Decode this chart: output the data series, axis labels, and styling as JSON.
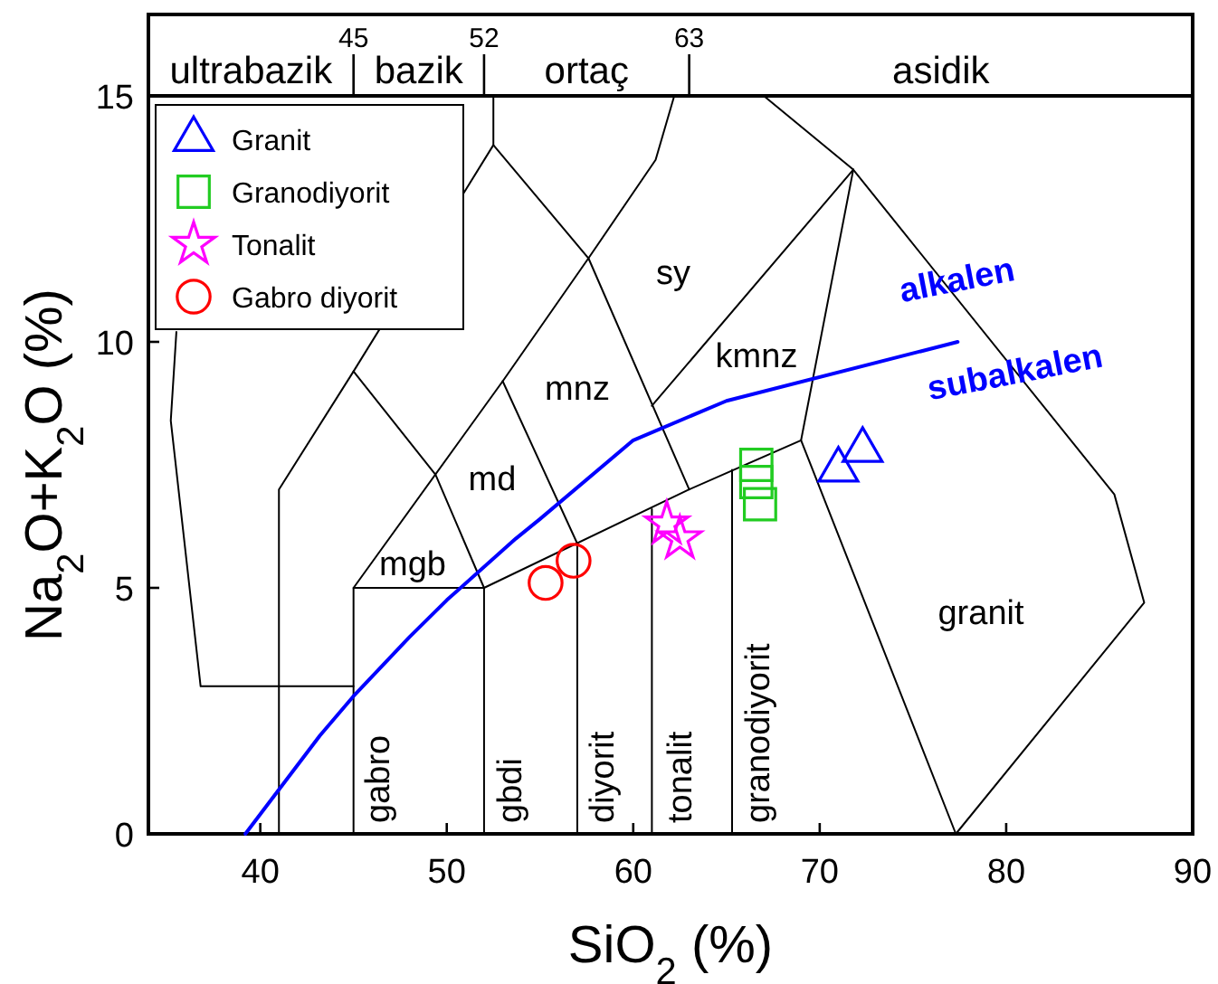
{
  "chart_data": {
    "type": "scatter",
    "xlabel": "SiO$_{2}$ (%)",
    "ylabel": "Na$_{2}$O+K$_{2}$O (%)",
    "xlim": [
      34,
      90
    ],
    "ylim": [
      0,
      15
    ],
    "xticks": [
      40,
      50,
      60,
      70,
      80,
      90
    ],
    "yticks": [
      0,
      5,
      10,
      15
    ],
    "x2lim": [
      34,
      90
    ],
    "x2ticks": [
      45,
      52,
      63
    ],
    "legend": "top left",
    "marker": "none",
    "line_style": "solid",
    "annotations": [
      "ultrabazik",
      "bazik",
      "ortaç",
      "asidik",
      "sy",
      "mnz",
      "kmnz",
      "md",
      "mgb",
      "granit",
      "gabro",
      "gbdi",
      "diyorit",
      "tonalit",
      "granodiyorit",
      "alkalen",
      "subalkalen"
    ],
    "series": [
      {
        "type": "line",
        "color": "#000000",
        "x": [
          35.5,
          35.2,
          36.8,
          45
        ],
        "values": [
          10.2,
          8.4,
          3,
          3
        ]
      },
      {
        "type": "line",
        "color": "#000000",
        "x": [
          41,
          41,
          45,
          52.5,
          52.5
        ],
        "values": [
          0,
          7,
          9.4,
          14,
          15
        ]
      },
      {
        "type": "line",
        "color": "#000000",
        "x": [
          52.5,
          57.6,
          63
        ],
        "values": [
          14,
          11.7,
          7
        ]
      },
      {
        "type": "line",
        "color": "#000000",
        "x": [
          62.2,
          61.2,
          57.6,
          53,
          45
        ],
        "values": [
          15,
          13.7,
          11.7,
          9.2,
          5
        ]
      },
      {
        "type": "line",
        "color": "#000000",
        "x": [
          45,
          49.4,
          52
        ],
        "values": [
          9.4,
          7.3,
          5
        ]
      },
      {
        "type": "line",
        "color": "#000000",
        "x": [
          53,
          57
        ],
        "values": [
          9.2,
          5.9
        ]
      },
      {
        "type": "line",
        "color": "#000000",
        "x": [
          45,
          45,
          52,
          52
        ],
        "values": [
          0,
          5,
          5,
          0
        ]
      },
      {
        "type": "line",
        "color": "#000000",
        "x": [
          52,
          63,
          69,
          71.8
        ],
        "values": [
          5,
          7,
          8,
          13.5
        ]
      },
      {
        "type": "line",
        "color": "#000000",
        "x": [
          57,
          57
        ],
        "values": [
          0,
          5.9
        ]
      },
      {
        "type": "line",
        "color": "#000000",
        "x": [
          61,
          61
        ],
        "values": [
          0,
          6.6
        ]
      },
      {
        "type": "line",
        "color": "#000000",
        "x": [
          65.3,
          65.3
        ],
        "values": [
          0,
          7.4
        ]
      },
      {
        "type": "line",
        "color": "#000000",
        "x": [
          69,
          77.3,
          87.4,
          85.8,
          71.8,
          67
        ],
        "values": [
          8,
          0,
          4.7,
          6.9,
          13.5,
          15
        ]
      },
      {
        "type": "line",
        "color": "#000000",
        "x": [
          71.8,
          61
        ],
        "values": [
          13.5,
          8.7
        ]
      },
      {
        "type": "line",
        "color": "#0000ff",
        "x": [
          39.2,
          40,
          43.2,
          45,
          48,
          50,
          53.7,
          55,
          60,
          65,
          77.4
        ],
        "values": [
          0,
          0.4,
          2,
          2.8,
          4,
          4.75,
          6,
          6.4,
          8,
          8.8,
          10
        ]
      },
      {
        "name": "Granit",
        "color": "#0000ff",
        "marker": "triangle",
        "x": [
          71.0,
          72.3
        ],
        "values": [
          7.4,
          7.8
        ]
      },
      {
        "name": "Granodiyorit",
        "color": "#22cc22",
        "marker": "square",
        "x": [
          66.6,
          66.6,
          66.8
        ],
        "values": [
          7.5,
          7.15,
          6.7
        ]
      },
      {
        "name": "Tonalit",
        "color": "#ff00ff",
        "marker": "star",
        "x": [
          61.8,
          62.5
        ],
        "values": [
          6.3,
          6.0
        ]
      },
      {
        "name": "Gabro diyorit",
        "color": "#ff0000",
        "marker": "circle",
        "x": [
          56.8,
          55.3
        ],
        "values": [
          5.55,
          5.1
        ]
      }
    ]
  }
}
